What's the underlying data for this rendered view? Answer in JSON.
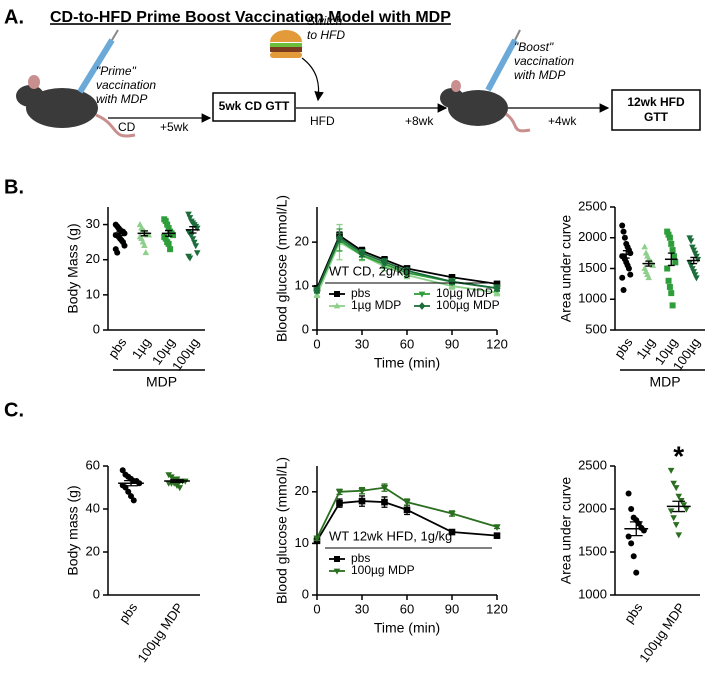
{
  "panel_labels": [
    "A.",
    "B.",
    "C."
  ],
  "panel_a": {
    "title": "CD-to-HFD Prime Boost Vaccination Model with MDP",
    "prime": [
      "\"Prime\"",
      "vaccination",
      "with MDP"
    ],
    "cd": "CD",
    "step1": "+5wk",
    "box1": "5wk CD GTT",
    "switch": [
      "Switch",
      "to HFD"
    ],
    "hfd": "HFD",
    "step2": "+8wk",
    "boost": [
      "\"Boost\"",
      "vaccination",
      "with MDP"
    ],
    "step3": "+4wk",
    "box2": [
      "12wk HFD",
      "GTT"
    ]
  },
  "chart_data": [
    {
      "type": "dot",
      "ylabel": "Body Mass (g)",
      "categories": [
        "pbs",
        "1µg",
        "10µg",
        "100µg"
      ],
      "group_label": "MDP",
      "ylim": [
        0,
        35
      ],
      "yticks": [
        0,
        10,
        20,
        30
      ],
      "groups": [
        {
          "color": "#000000",
          "marker": "circle",
          "values": [
            30,
            29.5,
            29,
            28.5,
            28,
            28,
            27.5,
            27,
            27,
            26.5,
            26,
            25.5,
            25,
            24,
            23,
            22
          ],
          "mean": 27.5,
          "sem": 0.6
        },
        {
          "color": "#8ed08b",
          "marker": "triangle",
          "values": [
            30,
            29,
            28.5,
            28,
            27.5,
            27,
            27,
            26.5,
            26,
            25,
            24,
            22
          ],
          "mean": 27.5,
          "sem": 0.7
        },
        {
          "color": "#2e9e3a",
          "marker": "square",
          "values": [
            31.5,
            31,
            30,
            29,
            28,
            27.5,
            27,
            26.5,
            26,
            25,
            24.5,
            23
          ],
          "mean": 27.5,
          "sem": 0.8
        },
        {
          "color": "#1b6d3a",
          "marker": "triangle-down",
          "values": [
            33,
            32,
            31,
            30.5,
            30,
            29.5,
            29,
            28,
            27.5,
            27,
            26,
            25,
            24,
            22,
            21,
            20.5
          ],
          "mean": 28.5,
          "sem": 0.9
        }
      ]
    },
    {
      "type": "line",
      "ylabel": "Blood glucose (mmol/L)",
      "xlabel": "Time (min)",
      "x": [
        0,
        15,
        30,
        45,
        60,
        90,
        120
      ],
      "xlim": [
        0,
        120
      ],
      "xticks": [
        0,
        30,
        60,
        90,
        120
      ],
      "ylim": [
        0,
        28
      ],
      "yticks": [
        0,
        10,
        20
      ],
      "legend_title": "WT CD, 2g/kg",
      "series": [
        {
          "name": "pbs",
          "color": "#000000",
          "marker": "square",
          "values": [
            9.5,
            21.5,
            18,
            16,
            14,
            12,
            10.5
          ],
          "errors": [
            0.6,
            0.8,
            0.8,
            0.7,
            0.6,
            0.5,
            0.5
          ]
        },
        {
          "name": "1µg MDP",
          "color": "#8ed08b",
          "marker": "triangle",
          "values": [
            8,
            20,
            17,
            14.5,
            12.5,
            10,
            8.5
          ],
          "errors": [
            0.6,
            4,
            1.2,
            1,
            0.8,
            0.7,
            0.7
          ]
        },
        {
          "name": "10µg MDP",
          "color": "#2e9e3a",
          "marker": "triangle-down",
          "values": [
            9,
            20.5,
            17,
            15,
            13,
            11,
            9.5
          ],
          "errors": [
            0.6,
            2.5,
            1,
            0.9,
            0.8,
            0.7,
            0.7
          ]
        },
        {
          "name": "100µg MDP",
          "color": "#1b6d3a",
          "marker": "diamond",
          "values": [
            9,
            21,
            17.5,
            15.5,
            13.5,
            11,
            9.5
          ],
          "errors": [
            0.5,
            1,
            0.8,
            0.7,
            0.6,
            0.5,
            0.5
          ]
        }
      ]
    },
    {
      "type": "dot",
      "ylabel": "Area under curve",
      "categories": [
        "pbs",
        "1µg",
        "10µg",
        "100µg"
      ],
      "group_label": "MDP",
      "ylim": [
        500,
        2500
      ],
      "yticks": [
        500,
        1000,
        1500,
        2000,
        2500
      ],
      "groups": [
        {
          "color": "#000000",
          "marker": "circle",
          "values": [
            2200,
            2100,
            2000,
            1900,
            1850,
            1800,
            1750,
            1700,
            1700,
            1650,
            1600,
            1550,
            1500,
            1400,
            1350,
            1150
          ],
          "mean": 1730,
          "sem": 60
        },
        {
          "color": "#8ed08b",
          "marker": "triangle",
          "values": [
            1850,
            1750,
            1700,
            1650,
            1600,
            1600,
            1550,
            1500,
            1450,
            1400,
            1350
          ],
          "mean": 1580,
          "sem": 40
        },
        {
          "color": "#2e9e3a",
          "marker": "square",
          "values": [
            2100,
            2050,
            2000,
            1900,
            1800,
            1700,
            1600,
            1500,
            1300,
            1200,
            1100,
            900
          ],
          "mean": 1650,
          "sem": 100
        },
        {
          "color": "#1b6d3a",
          "marker": "triangle-down",
          "values": [
            2000,
            1950,
            1850,
            1800,
            1750,
            1700,
            1650,
            1600,
            1550,
            1500,
            1450,
            1400,
            1350
          ],
          "mean": 1630,
          "sem": 50
        }
      ]
    },
    {
      "type": "dot",
      "ylabel": "Body mass (g)",
      "categories": [
        "pbs",
        "100µg MDP"
      ],
      "ylim": [
        0,
        60
      ],
      "yticks": [
        0,
        20,
        40,
        60
      ],
      "groups": [
        {
          "color": "#000000",
          "marker": "circle",
          "values": [
            58,
            56,
            55,
            54,
            53,
            53,
            52,
            51,
            50,
            48,
            46,
            44
          ],
          "mean": 52,
          "sem": 1.2
        },
        {
          "color": "#2a6e1f",
          "marker": "triangle-down",
          "values": [
            56,
            55,
            54,
            54,
            53,
            53,
            53,
            52,
            52,
            52,
            51,
            50
          ],
          "mean": 53,
          "sem": 0.6
        }
      ]
    },
    {
      "type": "line",
      "ylabel": "Blood glucose (mmol/L)",
      "xlabel": "Time (min)",
      "x": [
        0,
        15,
        30,
        45,
        60,
        90,
        120
      ],
      "xlim": [
        0,
        120
      ],
      "xticks": [
        0,
        30,
        60,
        90,
        120
      ],
      "ylim": [
        0,
        25
      ],
      "yticks": [
        0,
        10,
        20
      ],
      "legend_title": "WT 12wk HFD, 1g/kg",
      "series": [
        {
          "name": "pbs",
          "color": "#000000",
          "marker": "square",
          "values": [
            10.5,
            17.8,
            18.2,
            18,
            16.5,
            12.2,
            11.5
          ],
          "errors": [
            0.4,
            0.8,
            1,
            1,
            0.9,
            0.4,
            0.3
          ]
        },
        {
          "name": "100µg MDP",
          "color": "#2a6e1f",
          "marker": "triangle-down",
          "values": [
            11,
            20,
            20.2,
            20.8,
            18,
            15.8,
            13.2
          ],
          "errors": [
            0.4,
            0.5,
            0.6,
            0.7,
            0.6,
            0.5,
            0.3
          ]
        }
      ]
    },
    {
      "type": "dot",
      "ylabel": "Area under curve",
      "categories": [
        "pbs",
        "100µg MDP"
      ],
      "ylim": [
        1000,
        2500
      ],
      "yticks": [
        1000,
        1500,
        2000,
        2500
      ],
      "annotation": "*",
      "annotation_color": "#e8202a",
      "groups": [
        {
          "color": "#000000",
          "marker": "circle",
          "values": [
            2180,
            2000,
            1900,
            1870,
            1830,
            1780,
            1750,
            1680,
            1600,
            1450,
            1260
          ],
          "mean": 1770,
          "sem": 80
        },
        {
          "color": "#2a6e1f",
          "marker": "triangle-down",
          "values": [
            2450,
            2300,
            2250,
            2150,
            2100,
            2050,
            2000,
            1980,
            1900,
            1820,
            1700
          ],
          "mean": 2030,
          "sem": 60
        }
      ]
    }
  ]
}
